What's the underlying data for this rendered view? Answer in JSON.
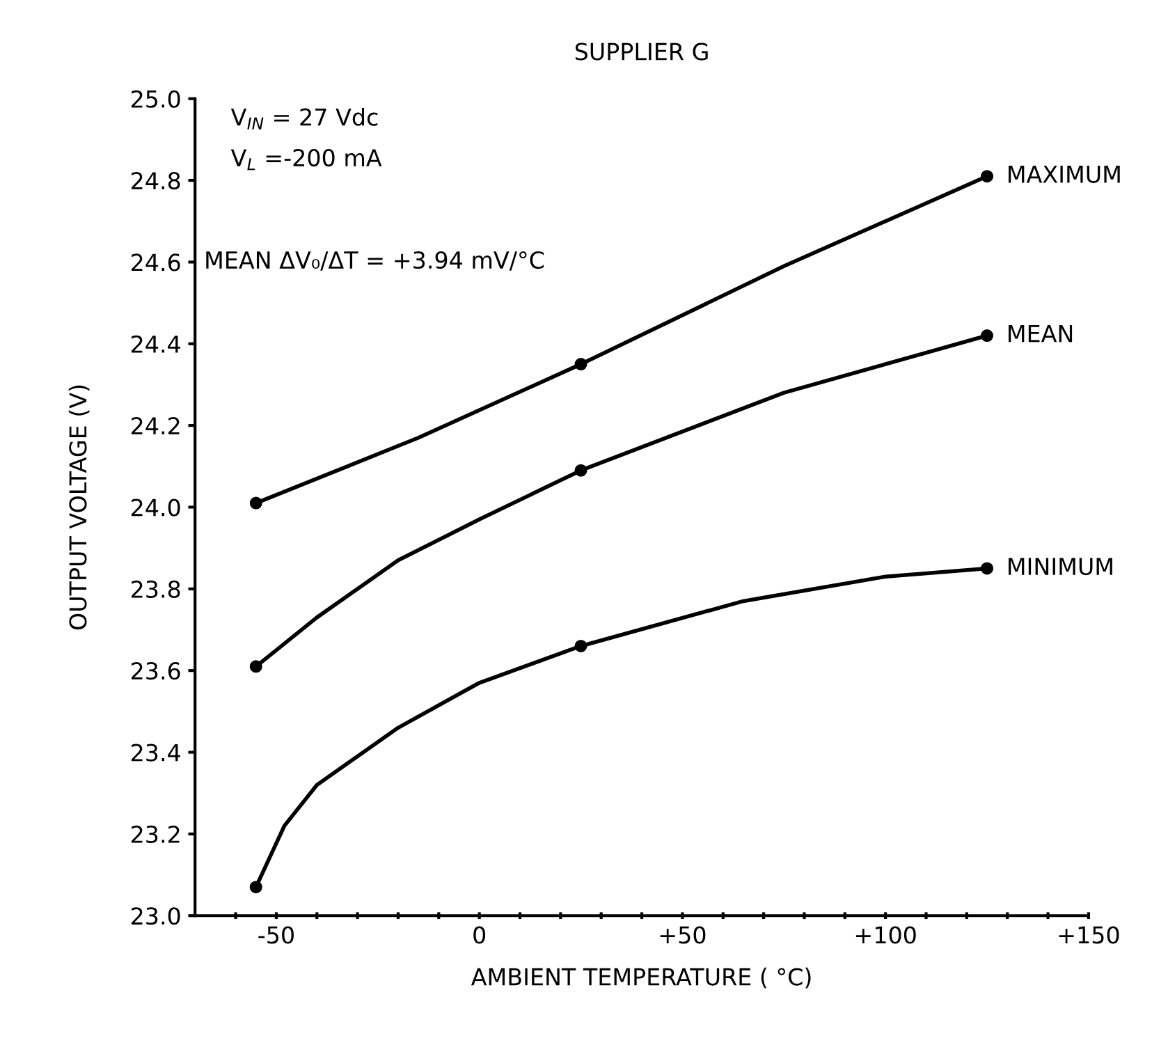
{
  "chart_data": {
    "type": "line",
    "title": "SUPPLIER G",
    "xlabel": "AMBIENT TEMPERATURE ( °C)",
    "ylabel": "OUTPUT VOLTAGE (V)",
    "series": [
      {
        "name": "MAXIMUM",
        "color": "#000000",
        "marker": "none",
        "x": [
          -55,
          -15,
          25,
          75,
          125
        ],
        "values": [
          24.01,
          24.17,
          24.35,
          24.59,
          24.81
        ]
      },
      {
        "name": "MEAN",
        "color": "#000000",
        "marker": "none",
        "x": [
          -55,
          -40,
          -20,
          0,
          25,
          75,
          125
        ],
        "values": [
          23.61,
          23.73,
          23.87,
          23.97,
          24.09,
          24.28,
          24.42
        ]
      },
      {
        "name": "MINIMUM",
        "color": "#000000",
        "marker": "none",
        "x": [
          -55,
          -48,
          -40,
          -20,
          0,
          25,
          65,
          100,
          125
        ],
        "values": [
          23.07,
          23.22,
          23.32,
          23.46,
          23.57,
          23.66,
          23.77,
          23.83,
          23.85
        ]
      },
      {
        "type": "scatter",
        "color": "#000000",
        "marker": "circle",
        "x": [
          -55,
          25,
          125
        ],
        "values": [
          24.01,
          24.35,
          24.81
        ]
      },
      {
        "type": "scatter",
        "color": "#000000",
        "marker": "circle",
        "x": [
          -55,
          25,
          125
        ],
        "values": [
          23.61,
          24.09,
          24.42
        ]
      },
      {
        "type": "scatter",
        "color": "#000000",
        "marker": "circle",
        "x": [
          -55,
          25,
          125
        ],
        "values": [
          23.07,
          23.66,
          23.85
        ]
      }
    ],
    "xlim": [
      -70,
      150
    ],
    "xticks": [
      {
        "value": -60,
        "label": null
      },
      {
        "value": -50,
        "label": "-50"
      },
      {
        "value": -40,
        "label": null
      },
      {
        "value": -30,
        "label": null
      },
      {
        "value": -20,
        "label": null
      },
      {
        "value": -10,
        "label": null
      },
      {
        "value": 0,
        "label": "0"
      },
      {
        "value": 10,
        "label": null
      },
      {
        "value": 20,
        "label": null
      },
      {
        "value": 30,
        "label": null
      },
      {
        "value": 40,
        "label": null
      },
      {
        "value": 50,
        "label": "+50"
      },
      {
        "value": 60,
        "label": null
      },
      {
        "value": 70,
        "label": null
      },
      {
        "value": 80,
        "label": null
      },
      {
        "value": 90,
        "label": null
      },
      {
        "value": 100,
        "label": "+100"
      },
      {
        "value": 110,
        "label": null
      },
      {
        "value": 120,
        "label": null
      },
      {
        "value": 130,
        "label": null
      },
      {
        "value": 140,
        "label": null
      },
      {
        "value": 150,
        "label": "+150"
      }
    ],
    "ylim": [
      23.0,
      25.0
    ],
    "yticks": [
      {
        "value": 23.0,
        "label": "23.0"
      },
      {
        "value": 23.2,
        "label": "23.2"
      },
      {
        "value": 23.4,
        "label": "23.4"
      },
      {
        "value": 23.6,
        "label": "23.6"
      },
      {
        "value": 23.8,
        "label": "23.8"
      },
      {
        "value": 24.0,
        "label": "24.0"
      },
      {
        "value": 24.2,
        "label": "24.2"
      },
      {
        "value": 24.4,
        "label": "24.4"
      },
      {
        "value": 24.6,
        "label": "24.6"
      },
      {
        "value": 24.8,
        "label": "24.8"
      },
      {
        "value": 25.0,
        "label": "25.0"
      }
    ],
    "annotations": [
      "V$_{IN}$ = 27 Vdc",
      "V$_{L}$ =-200 mA",
      "MEAN ΔV₀/ΔT = +3.94 mV/°C"
    ],
    "line_style": "solid",
    "grid": false,
    "legend": false
  }
}
